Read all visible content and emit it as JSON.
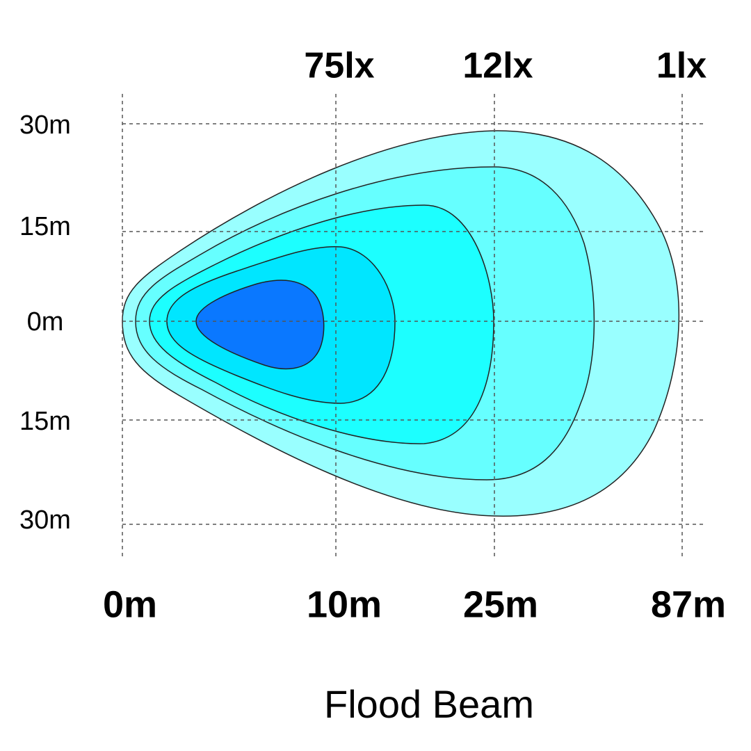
{
  "lux_labels": [
    "75lx",
    "12lx",
    "1lx"
  ],
  "width_labels": [
    "30m",
    "15m",
    "0m",
    "15m",
    "30m"
  ],
  "distance_labels": [
    "0m",
    "10m",
    "25m",
    "87m"
  ],
  "title": "Flood Beam"
}
